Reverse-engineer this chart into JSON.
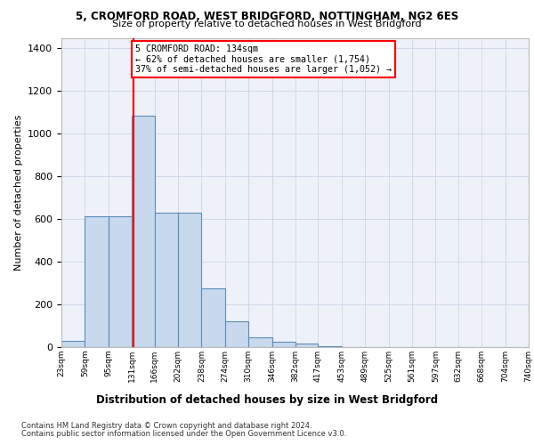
{
  "title1": "5, CROMFORD ROAD, WEST BRIDGFORD, NOTTINGHAM, NG2 6ES",
  "title2": "Size of property relative to detached houses in West Bridgford",
  "xlabel": "Distribution of detached houses by size in West Bridgford",
  "ylabel": "Number of detached properties",
  "footnote1": "Contains HM Land Registry data © Crown copyright and database right 2024.",
  "footnote2": "Contains public sector information licensed under the Open Government Licence v3.0.",
  "bar_color": "#c9d9ed",
  "bar_edge_color": "#5b8db8",
  "grid_color": "#d0d8e8",
  "background_color": "#eef2f8",
  "annotation_line1": "5 CROMFORD ROAD: 134sqm",
  "annotation_line2": "← 62% of detached houses are smaller (1,754)",
  "annotation_line3": "37% of semi-detached houses are larger (1,052) →",
  "vline_x": 134,
  "bin_edges": [
    23,
    59,
    95,
    131,
    166,
    202,
    238,
    274,
    310,
    346,
    382,
    417,
    453,
    489,
    525,
    561,
    597,
    632,
    668,
    704,
    740
  ],
  "bar_heights": [
    30,
    615,
    615,
    1085,
    630,
    630,
    275,
    120,
    45,
    25,
    15,
    5,
    2,
    1,
    0,
    0,
    0,
    0,
    0,
    0
  ],
  "ylim": [
    0,
    1450
  ],
  "yticks": [
    0,
    200,
    400,
    600,
    800,
    1000,
    1200,
    1400
  ]
}
